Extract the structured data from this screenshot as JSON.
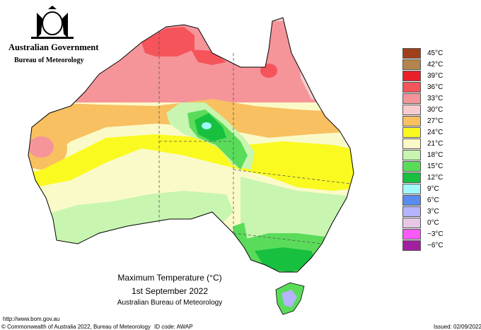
{
  "header": {
    "government": "Australian Government",
    "bureau": "Bureau of Meteorology"
  },
  "map": {
    "title": "Maximum Temperature (°C)",
    "date": "1st September 2022",
    "source": "Australian Bureau of Meteorology"
  },
  "legend": [
    {
      "label": "45°C",
      "color": "#a0401a"
    },
    {
      "label": "42°C",
      "color": "#b5844a"
    },
    {
      "label": "39°C",
      "color": "#e8202a"
    },
    {
      "label": "36°C",
      "color": "#f5545a"
    },
    {
      "label": "33°C",
      "color": "#f5959a"
    },
    {
      "label": "30°C",
      "color": "#f8cccf"
    },
    {
      "label": "27°C",
      "color": "#f8c060"
    },
    {
      "label": "24°C",
      "color": "#fafa20"
    },
    {
      "label": "21°C",
      "color": "#fafac8"
    },
    {
      "label": "18°C",
      "color": "#c8f5b0"
    },
    {
      "label": "15°C",
      "color": "#5adc5a"
    },
    {
      "label": "12°C",
      "color": "#18c040"
    },
    {
      "label": "9°C",
      "color": "#a0fafa"
    },
    {
      "label": "6°C",
      "color": "#5a8cf0"
    },
    {
      "label": "3°C",
      "color": "#b4b4ff"
    },
    {
      "label": "0°C",
      "color": "#e6c8e6"
    },
    {
      "label": "−3°C",
      "color": "#fa5afa"
    },
    {
      "label": "−6°C",
      "color": "#a020a0"
    }
  ],
  "footer": {
    "url": "http://www.bom.gov.au",
    "copyright": "© Commonwealth of Australia 2022, Bureau of Meteorology",
    "id_code": "ID code: AWAP",
    "issued": "Issued: 02/09/2022"
  }
}
